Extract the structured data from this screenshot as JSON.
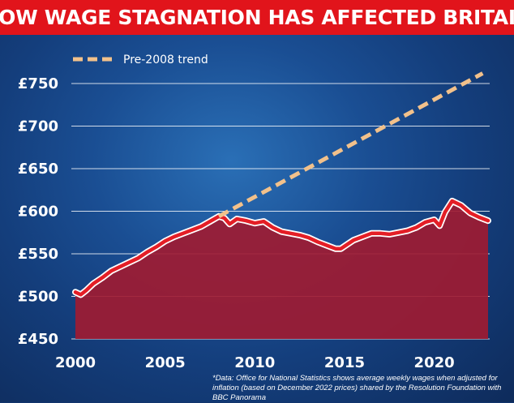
{
  "title": "HOW WAGE STAGNATION HAS AFFECTED BRITAIN",
  "source_note": "*Data: Office for National Statistics shows average weekly wages when adjusted for inflation (based on December 2022 prices) shared by the Resolution Foundation with BBC Panorama",
  "colors": {
    "banner": "#e1141b",
    "wage_line": "#e41e26",
    "wage_area": "#9e1b32",
    "trend_line": "#f2c18b",
    "grid": "#ffffff"
  },
  "chart_data": {
    "type": "line",
    "title": "HOW WAGE STAGNATION HAS AFFECTED BRITAIN",
    "xlabel": "",
    "ylabel": "",
    "xlim": [
      2000,
      2023
    ],
    "ylim": [
      450,
      775
    ],
    "x_ticks": [
      2000,
      2005,
      2010,
      2015,
      2020
    ],
    "x_tick_labels": [
      "2000",
      "2005",
      "2010",
      "2015",
      "2020"
    ],
    "y_ticks": [
      450,
      500,
      550,
      600,
      650,
      700,
      750
    ],
    "y_tick_labels": [
      "£450",
      "£500",
      "£550",
      "£600",
      "£650",
      "£700",
      "£750"
    ],
    "grid": true,
    "legend_position": "top-left",
    "series": [
      {
        "name": "",
        "style": "area-line",
        "points": [
          [
            2000.0,
            505
          ],
          [
            2000.3,
            502
          ],
          [
            2000.6,
            507
          ],
          [
            2001.0,
            515
          ],
          [
            2001.5,
            522
          ],
          [
            2002.0,
            530
          ],
          [
            2002.5,
            535
          ],
          [
            2003.0,
            540
          ],
          [
            2003.5,
            545
          ],
          [
            2004.0,
            552
          ],
          [
            2004.5,
            558
          ],
          [
            2005.0,
            565
          ],
          [
            2005.5,
            570
          ],
          [
            2006.0,
            574
          ],
          [
            2006.5,
            578
          ],
          [
            2007.0,
            582
          ],
          [
            2007.5,
            588
          ],
          [
            2008.0,
            594
          ],
          [
            2008.3,
            592
          ],
          [
            2008.6,
            585
          ],
          [
            2009.0,
            591
          ],
          [
            2009.5,
            589
          ],
          [
            2010.0,
            586
          ],
          [
            2010.5,
            588
          ],
          [
            2011.0,
            581
          ],
          [
            2011.5,
            576
          ],
          [
            2012.0,
            574
          ],
          [
            2012.5,
            572
          ],
          [
            2013.0,
            569
          ],
          [
            2013.5,
            564
          ],
          [
            2014.0,
            560
          ],
          [
            2014.5,
            556
          ],
          [
            2014.8,
            556
          ],
          [
            2015.0,
            559
          ],
          [
            2015.5,
            566
          ],
          [
            2016.0,
            570
          ],
          [
            2016.5,
            574
          ],
          [
            2017.0,
            574
          ],
          [
            2017.5,
            573
          ],
          [
            2018.0,
            575
          ],
          [
            2018.5,
            577
          ],
          [
            2019.0,
            581
          ],
          [
            2019.5,
            587
          ],
          [
            2020.0,
            590
          ],
          [
            2020.3,
            583
          ],
          [
            2020.6,
            599
          ],
          [
            2021.0,
            612
          ],
          [
            2021.5,
            607
          ],
          [
            2022.0,
            598
          ],
          [
            2022.5,
            593
          ],
          [
            2023.0,
            589
          ]
        ]
      },
      {
        "name": "Pre-2008 trend",
        "style": "dashed",
        "points": [
          [
            2008.0,
            594
          ],
          [
            2022.7,
            762
          ]
        ]
      }
    ]
  }
}
